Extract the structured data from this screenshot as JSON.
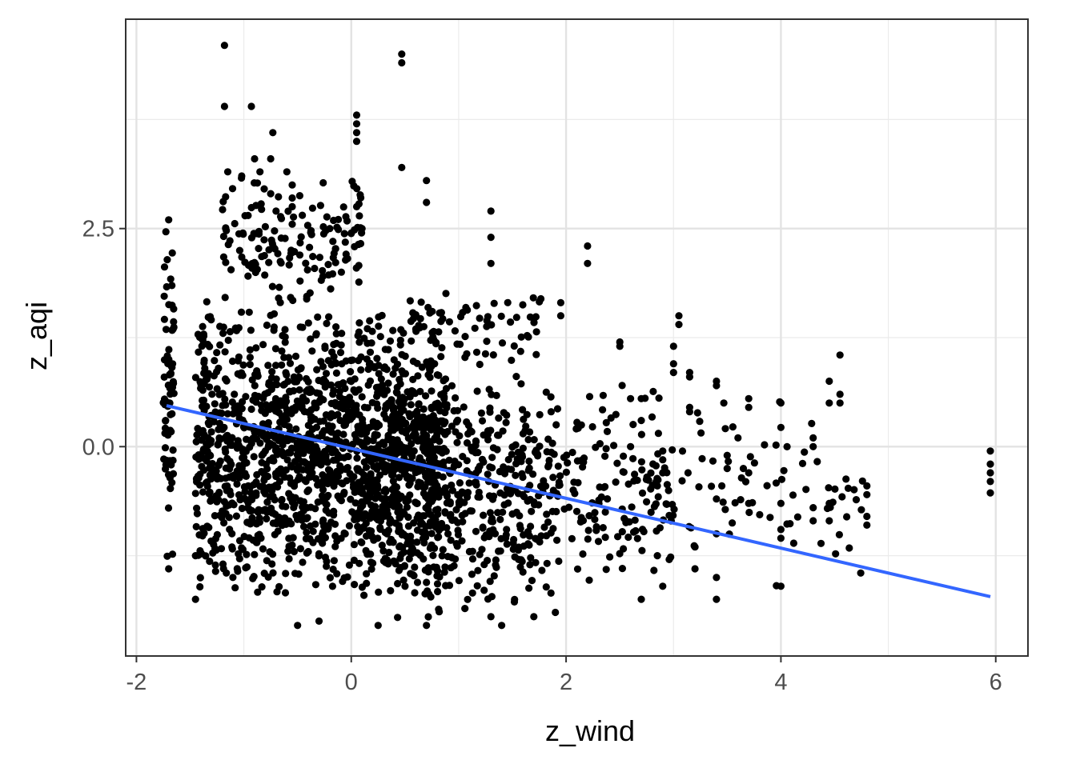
{
  "chart_data": {
    "type": "scatter",
    "title": "",
    "xlabel": "z_wind",
    "ylabel": "z_aqi",
    "xlim": [
      -2.1,
      6.3
    ],
    "ylim": [
      -2.4,
      4.9
    ],
    "x_ticks": [
      "-2",
      "0",
      "2",
      "4",
      "6"
    ],
    "x_tick_values": [
      -2,
      0,
      2,
      4,
      6
    ],
    "y_ticks": [
      "0.0",
      "2.5"
    ],
    "y_tick_values": [
      0,
      2.5
    ],
    "grid": true,
    "legend": "none",
    "point_color": "#000000",
    "points_note_count": 2600,
    "clusters": [
      {
        "xmin": -1.75,
        "xmax": -1.65,
        "ymin": -1.4,
        "ymax": 2.6,
        "n": 70
      },
      {
        "xmin": -1.45,
        "xmax": 0.9,
        "ymin": -1.8,
        "ymax": 1.7,
        "n": 1500
      },
      {
        "xmin": -1.2,
        "xmax": 0.1,
        "ymin": 1.6,
        "ymax": 3.2,
        "n": 150
      },
      {
        "xmin": 0.1,
        "xmax": 1.9,
        "ymin": -2.0,
        "ymax": 1.0,
        "n": 520
      },
      {
        "xmin": 0.6,
        "xmax": 1.8,
        "ymin": 0.9,
        "ymax": 1.8,
        "n": 60
      },
      {
        "xmin": 1.9,
        "xmax": 3.0,
        "ymin": -1.7,
        "ymax": 0.8,
        "n": 150
      },
      {
        "xmin": 3.0,
        "xmax": 4.8,
        "ymin": -1.7,
        "ymax": 0.7,
        "n": 70
      }
    ],
    "notable_points": [
      {
        "x": -1.18,
        "y": 4.6
      },
      {
        "x": 0.47,
        "y": 4.5
      },
      {
        "x": 0.47,
        "y": 4.4
      },
      {
        "x": -1.18,
        "y": 3.9
      },
      {
        "x": -0.93,
        "y": 3.9
      },
      {
        "x": 0.05,
        "y": 3.8
      },
      {
        "x": 0.05,
        "y": 3.7
      },
      {
        "x": 0.05,
        "y": 3.6
      },
      {
        "x": 0.05,
        "y": 3.5
      },
      {
        "x": -0.73,
        "y": 3.6
      },
      {
        "x": 0.47,
        "y": 3.2
      },
      {
        "x": 0.7,
        "y": 3.05
      },
      {
        "x": 0.7,
        "y": 2.8
      },
      {
        "x": 1.3,
        "y": 2.7
      },
      {
        "x": 1.3,
        "y": 2.4
      },
      {
        "x": 1.3,
        "y": 2.1
      },
      {
        "x": 2.2,
        "y": 2.3
      },
      {
        "x": 2.2,
        "y": 2.1
      },
      {
        "x": 1.95,
        "y": 1.65
      },
      {
        "x": 1.95,
        "y": 1.5
      },
      {
        "x": 3.05,
        "y": 1.5
      },
      {
        "x": 3.05,
        "y": 1.4
      },
      {
        "x": 2.5,
        "y": 1.2
      },
      {
        "x": 2.5,
        "y": 1.15
      },
      {
        "x": 3.0,
        "y": 1.15
      },
      {
        "x": 3.0,
        "y": 0.95
      },
      {
        "x": 3.0,
        "y": 0.85
      },
      {
        "x": 3.15,
        "y": 0.85
      },
      {
        "x": 3.15,
        "y": 0.8
      },
      {
        "x": 3.15,
        "y": 0.45
      },
      {
        "x": 3.15,
        "y": 0.4
      },
      {
        "x": 3.4,
        "y": 0.75
      },
      {
        "x": 3.4,
        "y": 0.7
      },
      {
        "x": 3.7,
        "y": 0.55
      },
      {
        "x": 3.7,
        "y": 0.45
      },
      {
        "x": 4.0,
        "y": 0.5
      },
      {
        "x": 4.0,
        "y": 0.22
      },
      {
        "x": 4.3,
        "y": 0.1
      },
      {
        "x": 4.3,
        "y": 0.0
      },
      {
        "x": 4.45,
        "y": 0.75
      },
      {
        "x": 4.45,
        "y": 0.5
      },
      {
        "x": 4.55,
        "y": 1.05
      },
      {
        "x": 4.55,
        "y": 0.6
      },
      {
        "x": 4.55,
        "y": 0.5
      },
      {
        "x": 4.8,
        "y": -0.45
      },
      {
        "x": 4.8,
        "y": -0.55
      },
      {
        "x": 4.8,
        "y": -0.8
      },
      {
        "x": 4.8,
        "y": -0.9
      },
      {
        "x": 5.95,
        "y": -0.05
      },
      {
        "x": 5.95,
        "y": -0.2
      },
      {
        "x": 5.95,
        "y": -0.3
      },
      {
        "x": 5.95,
        "y": -0.4
      },
      {
        "x": 5.95,
        "y": -0.53
      },
      {
        "x": 4.0,
        "y": -0.65
      },
      {
        "x": 4.0,
        "y": -0.95
      },
      {
        "x": 4.0,
        "y": -1.05
      },
      {
        "x": 4.0,
        "y": -1.6
      },
      {
        "x": 4.3,
        "y": -0.7
      },
      {
        "x": 4.3,
        "y": -0.85
      },
      {
        "x": 4.45,
        "y": -0.65
      },
      {
        "x": 4.45,
        "y": -0.85
      },
      {
        "x": 3.4,
        "y": -1.75
      },
      {
        "x": 3.4,
        "y": -1.5
      },
      {
        "x": 3.4,
        "y": -1.0
      },
      {
        "x": 3.4,
        "y": -0.6
      },
      {
        "x": 3.45,
        "y": -0.45
      },
      {
        "x": 3.5,
        "y": -0.1
      },
      {
        "x": 3.5,
        "y": -0.25
      },
      {
        "x": 3.6,
        "y": 0.1
      },
      {
        "x": 3.65,
        "y": -0.25
      },
      {
        "x": 3.7,
        "y": -0.3
      },
      {
        "x": 3.7,
        "y": -0.65
      },
      {
        "x": 3.2,
        "y": -1.15
      },
      {
        "x": 3.2,
        "y": -1.4
      },
      {
        "x": 2.9,
        "y": -0.05
      },
      {
        "x": 2.9,
        "y": -0.15
      },
      {
        "x": 2.9,
        "y": -0.3
      },
      {
        "x": 2.85,
        "y": -0.45
      },
      {
        "x": 2.85,
        "y": -1.25
      },
      {
        "x": 2.9,
        "y": -1.6
      },
      {
        "x": 2.7,
        "y": -1.75
      },
      {
        "x": 2.6,
        "y": 0.0
      },
      {
        "x": 2.6,
        "y": 0.55
      },
      {
        "x": 2.7,
        "y": 0.3
      },
      {
        "x": 2.7,
        "y": 0.55
      },
      {
        "x": -1.45,
        "y": -1.25
      },
      {
        "x": -1.45,
        "y": -1.75
      },
      {
        "x": -1.7,
        "y": -1.4
      },
      {
        "x": -0.5,
        "y": -2.05
      },
      {
        "x": -0.3,
        "y": -2.0
      },
      {
        "x": 0.25,
        "y": -2.05
      },
      {
        "x": 0.7,
        "y": -2.05
      },
      {
        "x": 1.4,
        "y": -2.05
      },
      {
        "x": 1.3,
        "y": -1.95
      },
      {
        "x": 1.9,
        "y": -1.9
      },
      {
        "x": 1.7,
        "y": -1.95
      },
      {
        "x": -0.75,
        "y": 2.9
      },
      {
        "x": -0.85,
        "y": 3.15
      },
      {
        "x": -0.6,
        "y": 3.15
      },
      {
        "x": -0.55,
        "y": 3.0
      },
      {
        "x": -1.15,
        "y": 3.15
      },
      {
        "x": -0.9,
        "y": 3.3
      },
      {
        "x": -0.75,
        "y": 3.3
      },
      {
        "x": -0.55,
        "y": 2.85
      },
      {
        "x": -0.55,
        "y": 2.75
      },
      {
        "x": -0.7,
        "y": 2.7
      },
      {
        "x": 0.05,
        "y": 2.75
      },
      {
        "x": 0.1,
        "y": 2.5
      },
      {
        "x": 0.0,
        "y": 2.45
      },
      {
        "x": -0.2,
        "y": 2.5
      },
      {
        "x": -1.7,
        "y": 2.6
      }
    ],
    "trend_line": {
      "type": "linear",
      "color": "#3366ff",
      "x": [
        -1.72,
        5.95
      ],
      "y": [
        0.47,
        -1.72
      ]
    }
  }
}
